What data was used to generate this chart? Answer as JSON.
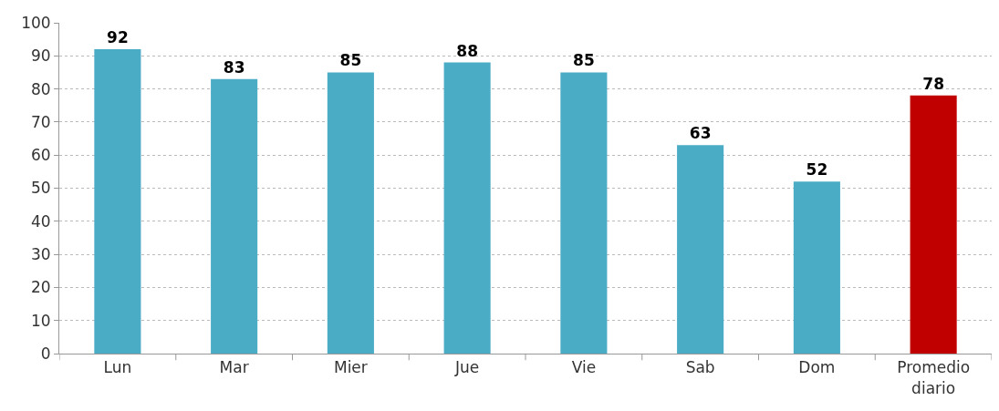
{
  "chart_data": {
    "type": "bar",
    "categories": [
      "Lun",
      "Mar",
      "Mier",
      "Jue",
      "Vie",
      "Sab",
      "Dom",
      "Promedio diario"
    ],
    "values": [
      92,
      83,
      85,
      88,
      85,
      63,
      52,
      78
    ],
    "colors": [
      "#4bacc6",
      "#4bacc6",
      "#4bacc6",
      "#4bacc6",
      "#4bacc6",
      "#4bacc6",
      "#4bacc6",
      "#c00000"
    ],
    "ylim": [
      0,
      100
    ],
    "yticks": [
      0,
      10,
      20,
      30,
      40,
      50,
      60,
      70,
      80,
      90,
      100
    ],
    "grid": "y",
    "data_labels": true
  }
}
